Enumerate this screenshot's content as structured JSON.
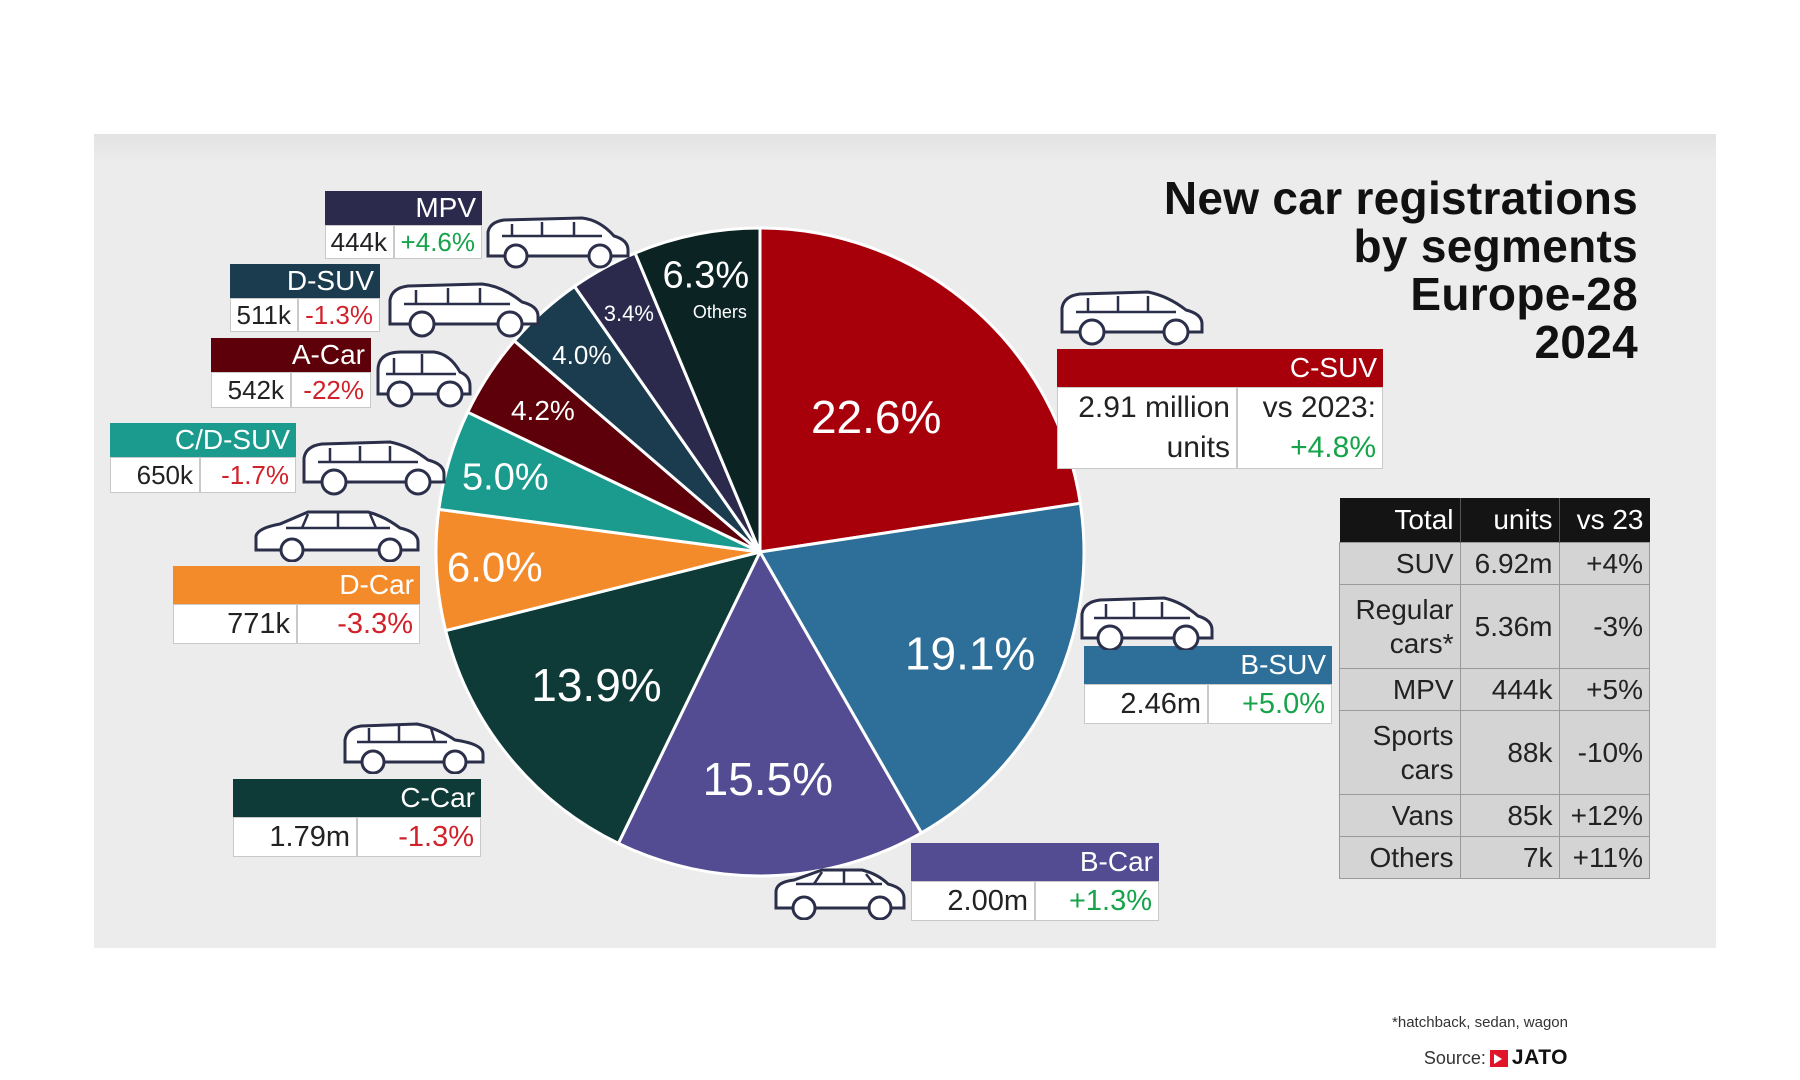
{
  "title_lines": [
    "New car registrations",
    "by segments",
    "Europe-28",
    "2024"
  ],
  "chart_data": {
    "type": "pie",
    "title": "New car registrations by segments Europe-28 2024",
    "slices": [
      {
        "segment": "C-SUV",
        "label": "22.6%",
        "value": 22.6,
        "color": "#a8000b",
        "units": "2.91 million units",
        "change": "+4.8%",
        "change_label": "vs 2023:"
      },
      {
        "segment": "B-SUV",
        "label": "19.1%",
        "value": 19.1,
        "color": "#2d6f98",
        "units": "2.46m",
        "change": "+5.0%"
      },
      {
        "segment": "B-Car",
        "label": "15.5%",
        "value": 15.5,
        "color": "#534c92",
        "units": "2.00m",
        "change": "+1.3%"
      },
      {
        "segment": "C-Car",
        "label": "13.9%",
        "value": 13.9,
        "color": "#0e3a37",
        "units": "1.79m",
        "change": "-1.3%"
      },
      {
        "segment": "D-Car",
        "label": "6.0%",
        "value": 6.0,
        "color": "#f48b2a",
        "units": "771k",
        "change": "-3.3%"
      },
      {
        "segment": "C/D-SUV",
        "label": "5.0%",
        "value": 5.0,
        "color": "#1b9a8e",
        "units": "650k",
        "change": "-1.7%"
      },
      {
        "segment": "A-Car",
        "label": "4.2%",
        "value": 4.2,
        "color": "#5e0009",
        "units": "542k",
        "change": "-22%"
      },
      {
        "segment": "D-SUV",
        "label": "4.0%",
        "value": 4.0,
        "color": "#1b3c4f",
        "units": "511k",
        "change": "-1.3%"
      },
      {
        "segment": "MPV",
        "label": "3.4%",
        "value": 3.4,
        "color": "#2b2a4d",
        "units": "444k",
        "change": "+4.6%"
      },
      {
        "segment": "Others",
        "label": "6.3%",
        "value": 6.3,
        "color": "#0b2322",
        "sublabel": "Others"
      }
    ]
  },
  "totals_table": {
    "headers": [
      "Total",
      "units",
      "vs 23"
    ],
    "rows": [
      [
        "SUV",
        "6.92m",
        "+4%"
      ],
      [
        "Regular cars*",
        "5.36m",
        "-3%"
      ],
      [
        "MPV",
        "444k",
        "+5%"
      ],
      [
        "Sports cars",
        "88k",
        "-10%"
      ],
      [
        "Vans",
        "85k",
        "+12%"
      ],
      [
        "Others",
        "7k",
        "+11%"
      ]
    ]
  },
  "footnote": "*hatchback, sedan, wagon",
  "source_label": "Source:",
  "source_brand": "JATO",
  "colors": {
    "positive": "#17a34a",
    "negative": "#d0222b",
    "panel": "#ececec"
  }
}
